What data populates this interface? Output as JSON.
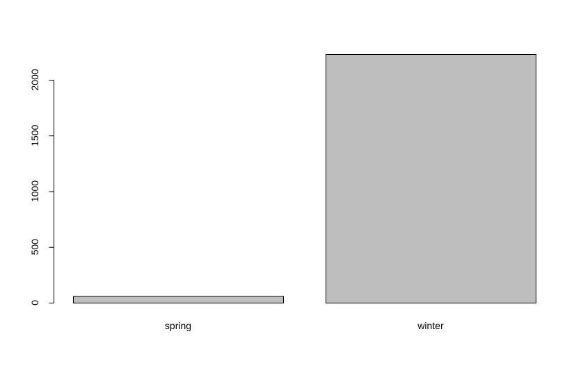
{
  "chart_data": {
    "type": "bar",
    "categories": [
      "spring",
      "winter"
    ],
    "values": [
      60,
      2230
    ],
    "title": "",
    "xlabel": "",
    "ylabel": "",
    "ylim": [
      0,
      2230
    ],
    "yticks": [
      0,
      500,
      1000,
      1500,
      2000
    ],
    "grid": false,
    "bar_color": "#bebebe",
    "bar_border_color": "#000000"
  }
}
